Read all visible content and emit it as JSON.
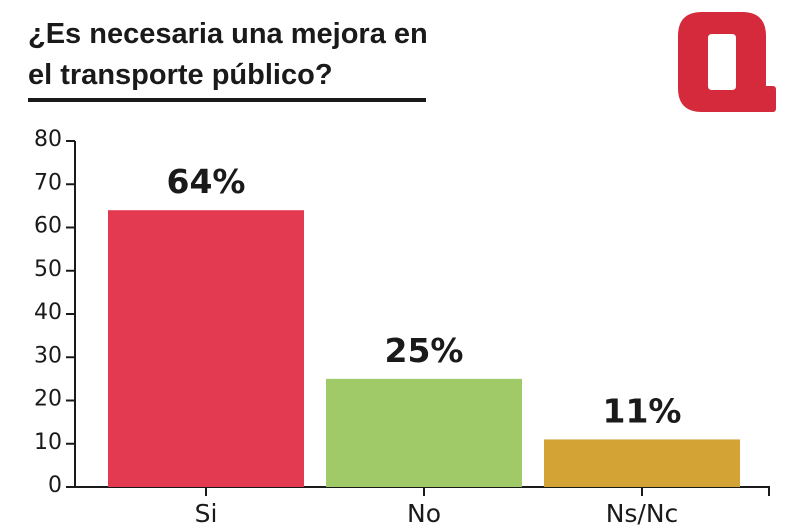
{
  "title": "¿Es necesaria una mejora en el transporte público?",
  "brand_color": "#d42a3c",
  "chart_data": {
    "type": "bar",
    "title": "¿Es necesaria una mejora en el transporte público?",
    "categories": [
      "Si",
      "No",
      "Ns/Nc"
    ],
    "values": [
      64,
      25,
      11
    ],
    "data_labels": [
      "64%",
      "25%",
      "11%"
    ],
    "colors": [
      "#e33a51",
      "#9fca67",
      "#d4a336"
    ],
    "ylim": [
      0,
      80
    ],
    "yticks": [
      "0",
      "10",
      "20",
      "30",
      "40",
      "50",
      "60",
      "70",
      "80"
    ],
    "xlabel": "",
    "ylabel": "",
    "grid": false,
    "legend": "none"
  }
}
